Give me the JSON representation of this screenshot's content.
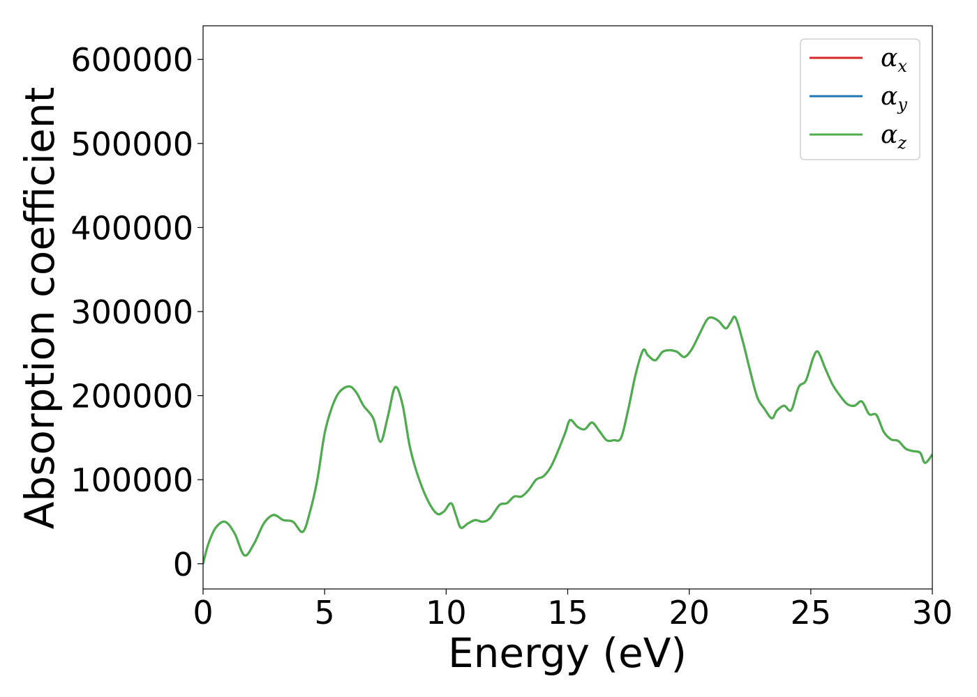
{
  "chart_data": {
    "type": "line",
    "title": "",
    "xlabel": "Energy (eV)",
    "ylabel": "Absorption coefficient",
    "xlim": [
      0,
      30
    ],
    "ylim": [
      -30000,
      640000
    ],
    "xticks": [
      0,
      5,
      10,
      15,
      20,
      25,
      30
    ],
    "xtick_labels": [
      "0",
      "5",
      "10",
      "15",
      "20",
      "25",
      "30"
    ],
    "yticks": [
      0,
      100000,
      200000,
      300000,
      400000,
      500000,
      600000
    ],
    "ytick_labels": [
      "0",
      "100000",
      "200000",
      "300000",
      "400000",
      "500000",
      "600000"
    ],
    "grid": false,
    "legend_position": "top-right",
    "x": [
      0,
      0.2,
      0.5,
      0.9,
      1.3,
      1.7,
      2.1,
      2.5,
      2.9,
      3.3,
      3.7,
      4.1,
      4.4,
      4.7,
      5.0,
      5.3,
      5.6,
      6.0,
      6.3,
      6.6,
      7.0,
      7.3,
      7.6,
      7.9,
      8.2,
      8.5,
      8.8,
      9.2,
      9.6,
      9.9,
      10.2,
      10.4,
      10.6,
      10.9,
      11.2,
      11.5,
      11.8,
      12.2,
      12.5,
      12.8,
      13.1,
      13.4,
      13.7,
      14.0,
      14.3,
      14.6,
      14.9,
      15.1,
      15.4,
      15.7,
      16.0,
      16.3,
      16.6,
      16.9,
      17.2,
      17.5,
      17.8,
      18.1,
      18.3,
      18.6,
      18.9,
      19.2,
      19.5,
      19.8,
      20.1,
      20.4,
      20.7,
      20.9,
      21.2,
      21.5,
      21.7,
      21.9,
      22.2,
      22.5,
      22.8,
      23.1,
      23.4,
      23.6,
      23.9,
      24.2,
      24.5,
      24.8,
      25.1,
      25.3,
      25.6,
      25.9,
      26.2,
      26.5,
      26.8,
      27.1,
      27.4,
      27.7,
      28.0,
      28.3,
      28.6,
      28.9,
      29.2,
      29.5,
      29.7,
      30.0
    ],
    "series": [
      {
        "name": "α_x",
        "color": "#d62728",
        "values": [
          0,
          22000,
          42000,
          50000,
          36000,
          10000,
          24000,
          48000,
          58000,
          52000,
          50000,
          38000,
          62000,
          100000,
          155000,
          186000,
          204000,
          211000,
          204000,
          188000,
          173000,
          145000,
          175000,
          210000,
          190000,
          140000,
          108000,
          78000,
          60000,
          62000,
          72000,
          58000,
          43000,
          48000,
          52000,
          50000,
          54000,
          70000,
          72000,
          80000,
          80000,
          88000,
          100000,
          104000,
          115000,
          134000,
          156000,
          171000,
          163000,
          160000,
          168000,
          158000,
          147000,
          147000,
          150000,
          185000,
          226000,
          254000,
          248000,
          242000,
          252000,
          254000,
          252000,
          246000,
          255000,
          272000,
          289000,
          293000,
          289000,
          280000,
          287000,
          293000,
          265000,
          230000,
          198000,
          184000,
          173000,
          182000,
          188000,
          183000,
          210000,
          218000,
          245000,
          252000,
          232000,
          213000,
          200000,
          190000,
          188000,
          193000,
          178000,
          177000,
          157000,
          148000,
          146000,
          137000,
          134000,
          132000,
          120000,
          130000
        ]
      },
      {
        "name": "α_y",
        "color": "#1f77b4",
        "values": [
          0,
          22000,
          42000,
          50000,
          36000,
          10000,
          24000,
          48000,
          58000,
          52000,
          50000,
          38000,
          62000,
          100000,
          155000,
          186000,
          204000,
          211000,
          204000,
          188000,
          173000,
          145000,
          175000,
          210000,
          190000,
          140000,
          108000,
          78000,
          60000,
          62000,
          72000,
          58000,
          43000,
          48000,
          52000,
          50000,
          54000,
          70000,
          72000,
          80000,
          80000,
          88000,
          100000,
          104000,
          115000,
          134000,
          156000,
          171000,
          163000,
          160000,
          168000,
          158000,
          147000,
          147000,
          150000,
          185000,
          226000,
          254000,
          248000,
          242000,
          252000,
          254000,
          252000,
          246000,
          255000,
          272000,
          289000,
          293000,
          289000,
          280000,
          287000,
          293000,
          265000,
          230000,
          198000,
          184000,
          173000,
          182000,
          188000,
          183000,
          210000,
          218000,
          245000,
          252000,
          232000,
          213000,
          200000,
          190000,
          188000,
          193000,
          178000,
          177000,
          157000,
          148000,
          146000,
          137000,
          134000,
          132000,
          120000,
          130000
        ]
      },
      {
        "name": "α_z",
        "color": "#4daf4a",
        "values": [
          0,
          22000,
          42000,
          50000,
          36000,
          10000,
          24000,
          48000,
          58000,
          52000,
          50000,
          38000,
          62000,
          100000,
          155000,
          186000,
          204000,
          211000,
          204000,
          188000,
          173000,
          145000,
          175000,
          210000,
          190000,
          140000,
          108000,
          78000,
          60000,
          62000,
          72000,
          58000,
          43000,
          48000,
          52000,
          50000,
          54000,
          70000,
          72000,
          80000,
          80000,
          88000,
          100000,
          104000,
          115000,
          134000,
          156000,
          171000,
          163000,
          160000,
          168000,
          158000,
          147000,
          147000,
          150000,
          185000,
          226000,
          254000,
          248000,
          242000,
          252000,
          254000,
          252000,
          246000,
          255000,
          272000,
          289000,
          293000,
          289000,
          280000,
          287000,
          293000,
          265000,
          230000,
          198000,
          184000,
          173000,
          182000,
          188000,
          183000,
          210000,
          218000,
          245000,
          252000,
          232000,
          213000,
          200000,
          190000,
          188000,
          193000,
          178000,
          177000,
          157000,
          148000,
          146000,
          137000,
          134000,
          132000,
          120000,
          130000
        ]
      }
    ],
    "legend": [
      {
        "symbol": "α",
        "sub": "x",
        "color": "#d62728"
      },
      {
        "symbol": "α",
        "sub": "y",
        "color": "#1f77b4"
      },
      {
        "symbol": "α",
        "sub": "z",
        "color": "#4daf4a"
      }
    ]
  }
}
